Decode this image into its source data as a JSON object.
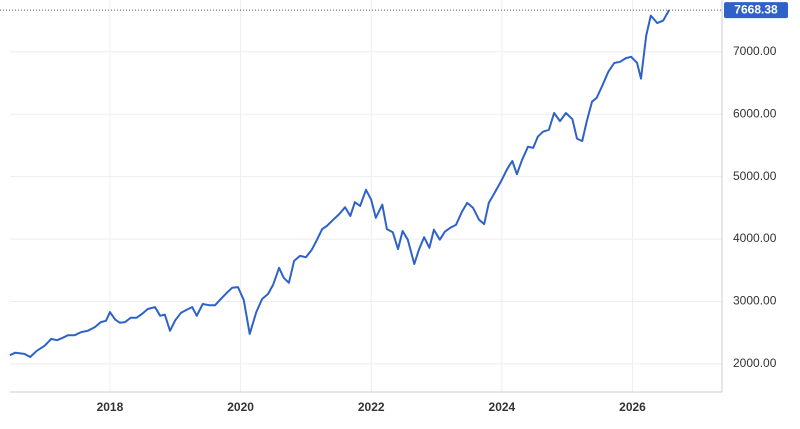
{
  "chart_data": {
    "type": "line",
    "x": [
      2016.47,
      2016.55,
      2016.69,
      2016.78,
      2016.88,
      2017.0,
      2017.1,
      2017.19,
      2017.28,
      2017.36,
      2017.46,
      2017.56,
      2017.66,
      2017.77,
      2017.86,
      2017.94,
      2018.0,
      2018.08,
      2018.15,
      2018.23,
      2018.32,
      2018.41,
      2018.49,
      2018.58,
      2018.69,
      2018.77,
      2018.84,
      2018.92,
      2019.0,
      2019.09,
      2019.18,
      2019.26,
      2019.33,
      2019.42,
      2019.52,
      2019.61,
      2019.68,
      2019.78,
      2019.87,
      2019.96,
      2020.05,
      2020.14,
      2020.24,
      2020.33,
      2020.42,
      2020.5,
      2020.59,
      2020.66,
      2020.74,
      2020.82,
      2020.91,
      2021.0,
      2021.09,
      2021.17,
      2021.25,
      2021.32,
      2021.42,
      2021.51,
      2021.6,
      2021.68,
      2021.75,
      2021.83,
      2021.92,
      2022.0,
      2022.07,
      2022.17,
      2022.24,
      2022.33,
      2022.41,
      2022.48,
      2022.56,
      2022.66,
      2022.73,
      2022.81,
      2022.89,
      2022.96,
      2023.05,
      2023.13,
      2023.21,
      2023.3,
      2023.39,
      2023.47,
      2023.56,
      2023.65,
      2023.73,
      2023.8,
      2023.9,
      2023.99,
      2024.08,
      2024.16,
      2024.23,
      2024.31,
      2024.4,
      2024.48,
      2024.55,
      2024.63,
      2024.72,
      2024.8,
      2024.89,
      2024.98,
      2025.08,
      2025.15,
      2025.23,
      2025.3,
      2025.38,
      2025.45,
      2025.53,
      2025.63,
      2025.72,
      2025.81,
      2025.9,
      2025.98,
      2026.07,
      2026.13,
      2026.21,
      2026.28,
      2026.38,
      2026.47,
      2026.56
    ],
    "series": [
      {
        "color": "#2f62c9",
        "values": [
          2140,
          2180,
          2160,
          2110,
          2210,
          2290,
          2400,
          2380,
          2420,
          2460,
          2460,
          2510,
          2530,
          2590,
          2670,
          2690,
          2830,
          2710,
          2660,
          2670,
          2740,
          2740,
          2800,
          2880,
          2910,
          2770,
          2790,
          2530,
          2700,
          2820,
          2870,
          2910,
          2770,
          2960,
          2940,
          2940,
          3020,
          3130,
          3220,
          3230,
          3020,
          2480,
          2830,
          3040,
          3120,
          3270,
          3540,
          3380,
          3300,
          3650,
          3730,
          3710,
          3830,
          3990,
          4160,
          4210,
          4310,
          4400,
          4510,
          4370,
          4590,
          4530,
          4790,
          4630,
          4340,
          4550,
          4160,
          4110,
          3840,
          4130,
          3990,
          3600,
          3830,
          4030,
          3860,
          4150,
          3990,
          4120,
          4180,
          4230,
          4440,
          4580,
          4500,
          4310,
          4240,
          4580,
          4760,
          4930,
          5120,
          5250,
          5040,
          5270,
          5480,
          5460,
          5640,
          5720,
          5750,
          6020,
          5890,
          6020,
          5920,
          5610,
          5570,
          5890,
          6200,
          6260,
          6440,
          6680,
          6820,
          6840,
          6900,
          6920,
          6820,
          6570,
          7260,
          7580,
          7460,
          7500,
          7668.38
        ]
      }
    ],
    "xlim": [
      2016.47,
      2027.37
    ],
    "xticks": [
      2018,
      2020,
      2022,
      2024,
      2026
    ],
    "ylim": [
      1550,
      7830
    ],
    "yticks": [
      {
        "value": 2000,
        "label": "2000.00"
      },
      {
        "value": 3000,
        "label": "3000.00"
      },
      {
        "value": 4000,
        "label": "4000.00"
      },
      {
        "value": 5000,
        "label": "5000.00"
      },
      {
        "value": 6000,
        "label": "6000.00"
      },
      {
        "value": 7000,
        "label": "7000.00"
      }
    ],
    "grid": true
  }
}
